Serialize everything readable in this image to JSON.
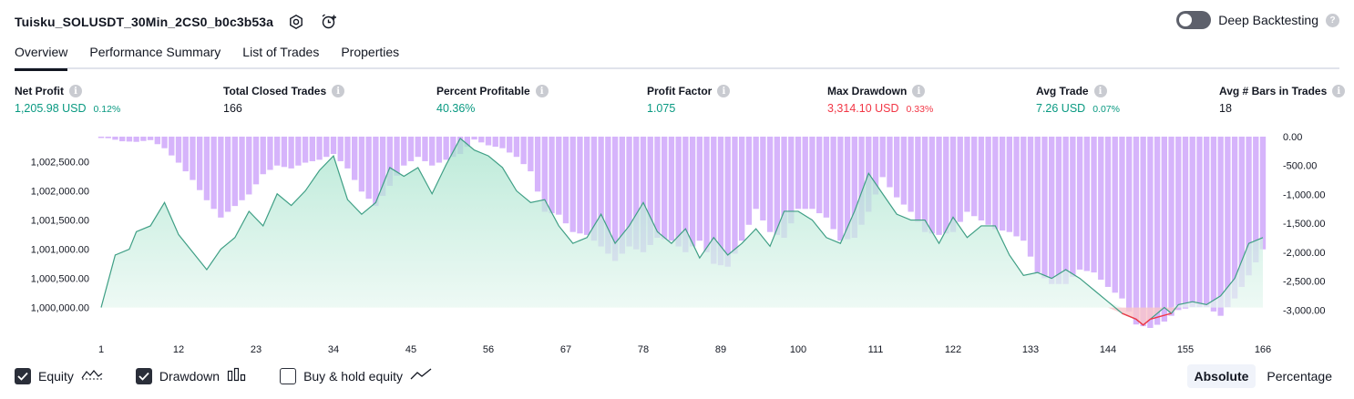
{
  "header": {
    "strategy_name": "Tuisku_SOLUSDT_30Min_2CS0_b0c3b53a",
    "settings_icon": "gear-icon",
    "alert_icon": "alarm-clock-plus-icon"
  },
  "deep_backtesting": {
    "label": "Deep Backtesting",
    "enabled": false
  },
  "tabs": [
    {
      "label": "Overview",
      "active": true
    },
    {
      "label": "Performance Summary",
      "active": false
    },
    {
      "label": "List of Trades",
      "active": false
    },
    {
      "label": "Properties",
      "active": false
    }
  ],
  "metrics": [
    {
      "label": "Net Profit",
      "value": "1,205.98 USD",
      "pct": "0.12%",
      "color": "green"
    },
    {
      "label": "Total Closed Trades",
      "value": "166",
      "pct": "",
      "color": "neutral"
    },
    {
      "label": "Percent Profitable",
      "value": "40.36%",
      "pct": "",
      "color": "green"
    },
    {
      "label": "Profit Factor",
      "value": "1.075",
      "pct": "",
      "color": "green"
    },
    {
      "label": "Max Drawdown",
      "value": "3,314.10 USD",
      "pct": "0.33%",
      "color": "red"
    },
    {
      "label": "Avg Trade",
      "value": "7.26 USD",
      "pct": "0.07%",
      "color": "green"
    },
    {
      "label": "Avg # Bars in Trades",
      "value": "18",
      "pct": "",
      "color": "neutral"
    }
  ],
  "colors": {
    "green": "#089981",
    "red": "#f23645",
    "equity_line": "#3f9f85",
    "equity_fill": "#cdeee2",
    "equity_below": "#f23645",
    "drawdown_bar": "#d6b4fb",
    "drawdown_overlap": "#a7a6e6"
  },
  "chart_data": {
    "type": "area",
    "x_ticks": [
      "1",
      "12",
      "23",
      "34",
      "45",
      "56",
      "67",
      "78",
      "89",
      "100",
      "111",
      "122",
      "133",
      "144",
      "155",
      "166"
    ],
    "x_range": [
      1,
      166
    ],
    "left_axis": {
      "ticks": [
        "1,000,000.00",
        "1,000,500.00",
        "1,001,000.00",
        "1,001,500.00",
        "1,002,000.00",
        "1,002,500.00"
      ],
      "range": [
        999650,
        1002930
      ],
      "baseline": 1000000
    },
    "right_axis": {
      "ticks": [
        "0.00",
        "-500.00",
        "-1,000.00",
        "-1,500.00",
        "-2,000.00",
        "-2,500.00",
        "-3,000.00"
      ],
      "range": [
        -3310,
        0
      ]
    },
    "series": [
      {
        "name": "Equity",
        "x": [
          1,
          3,
          5,
          6,
          8,
          10,
          12,
          14,
          16,
          18,
          20,
          22,
          24,
          26,
          28,
          30,
          32,
          34,
          36,
          38,
          40,
          42,
          44,
          46,
          48,
          50,
          52,
          54,
          56,
          58,
          60,
          62,
          64,
          66,
          68,
          70,
          72,
          74,
          76,
          78,
          80,
          82,
          84,
          86,
          88,
          90,
          92,
          94,
          96,
          98,
          100,
          102,
          104,
          106,
          108,
          110,
          112,
          114,
          116,
          118,
          120,
          122,
          124,
          126,
          128,
          130,
          132,
          134,
          136,
          138,
          140,
          142,
          144,
          146,
          148,
          149,
          150,
          152,
          153,
          154,
          156,
          158,
          160,
          162,
          164,
          166
        ],
        "values": [
          1000000,
          1000900,
          1001000,
          1001300,
          1001400,
          1001800,
          1001250,
          1000950,
          1000650,
          1001000,
          1001200,
          1001650,
          1001400,
          1001950,
          1001750,
          1002000,
          1002350,
          1002600,
          1001850,
          1001600,
          1001800,
          1002400,
          1002250,
          1002400,
          1001950,
          1002450,
          1002900,
          1002700,
          1002600,
          1002400,
          1002000,
          1001800,
          1001850,
          1001400,
          1001100,
          1001200,
          1001600,
          1001100,
          1001400,
          1001800,
          1001300,
          1001100,
          1001350,
          1000850,
          1001200,
          1000900,
          1001100,
          1001350,
          1001050,
          1001650,
          1001650,
          1001500,
          1001200,
          1001100,
          1001650,
          1002300,
          1001950,
          1001600,
          1001500,
          1001500,
          1001100,
          1001550,
          1001200,
          1001400,
          1001400,
          1000900,
          1000550,
          1000600,
          1000500,
          1000650,
          1000500,
          1000300,
          1000100,
          999900,
          999800,
          999700,
          999800,
          1000000,
          999900,
          1000050,
          1000100,
          1000050,
          1000200,
          1000500,
          1001100,
          1001200
        ]
      },
      {
        "name": "Drawdown",
        "x": [
          1,
          4,
          6,
          8,
          10,
          12,
          14,
          16,
          18,
          20,
          22,
          24,
          26,
          28,
          30,
          32,
          34,
          36,
          38,
          40,
          42,
          44,
          46,
          48,
          50,
          52,
          54,
          56,
          58,
          60,
          62,
          64,
          66,
          68,
          70,
          72,
          74,
          76,
          78,
          80,
          82,
          84,
          86,
          88,
          90,
          92,
          94,
          96,
          98,
          100,
          102,
          104,
          106,
          108,
          110,
          112,
          114,
          116,
          118,
          120,
          122,
          124,
          126,
          128,
          130,
          132,
          134,
          136,
          138,
          140,
          142,
          144,
          146,
          148,
          150,
          152,
          154,
          156,
          158,
          160,
          162,
          164,
          166
        ],
        "values": [
          0,
          -80,
          -90,
          -60,
          -200,
          -450,
          -750,
          -1100,
          -1400,
          -1200,
          -1000,
          -650,
          -500,
          -550,
          -450,
          -400,
          -300,
          -550,
          -950,
          -1200,
          -850,
          -500,
          -350,
          -500,
          -400,
          -300,
          -50,
          -150,
          -200,
          -350,
          -600,
          -1300,
          -1350,
          -1650,
          -1700,
          -1900,
          -2150,
          -1900,
          -2000,
          -1750,
          -1800,
          -2000,
          -1800,
          -2200,
          -2250,
          -1800,
          -1250,
          -1650,
          -1750,
          -1250,
          -1250,
          -1400,
          -1800,
          -1750,
          -1300,
          -700,
          -1050,
          -1300,
          -1650,
          -1700,
          -1650,
          -1300,
          -1450,
          -1600,
          -1650,
          -1800,
          -2350,
          -2550,
          -2550,
          -2300,
          -2350,
          -2600,
          -2800,
          -3250,
          -3310,
          -3200,
          -3000,
          -2950,
          -2950,
          -3100,
          -2800,
          -2400,
          -1950
        ]
      }
    ]
  },
  "legend": {
    "equity": {
      "label": "Equity",
      "checked": true,
      "icon": "equity-line-icon"
    },
    "drawdown": {
      "label": "Drawdown",
      "checked": true,
      "icon": "drawdown-bars-icon"
    },
    "buy_hold": {
      "label": "Buy & hold equity",
      "checked": false,
      "icon": "trend-line-icon"
    }
  },
  "mode": {
    "absolute": "Absolute",
    "percentage": "Percentage",
    "selected": "absolute"
  }
}
